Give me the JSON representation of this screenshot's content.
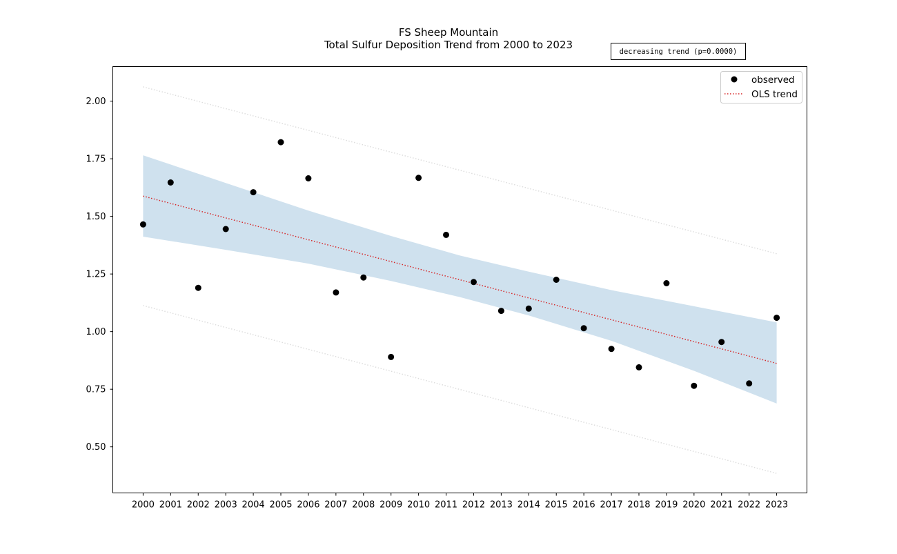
{
  "chart_data": {
    "type": "scatter",
    "title": "FS Sheep Mountain",
    "subtitle": "Total Sulfur Deposition Trend from 2000 to 2023",
    "xlabel": "",
    "ylabel": "",
    "x": [
      2000,
      2001,
      2002,
      2003,
      2004,
      2005,
      2006,
      2007,
      2008,
      2009,
      2010,
      2011,
      2012,
      2013,
      2014,
      2015,
      2016,
      2017,
      2018,
      2019,
      2020,
      2021,
      2022,
      2023
    ],
    "x_ticks": [
      "2000",
      "2001",
      "2002",
      "2003",
      "2004",
      "2005",
      "2006",
      "2007",
      "2008",
      "2009",
      "2010",
      "2011",
      "2012",
      "2013",
      "2014",
      "2015",
      "2016",
      "2017",
      "2018",
      "2019",
      "2020",
      "2021",
      "2022",
      "2023"
    ],
    "y_ticks": [
      "0.50",
      "0.75",
      "1.00",
      "1.25",
      "1.50",
      "1.75",
      "2.00"
    ],
    "xlim": [
      1998.9,
      2024.1
    ],
    "ylim": [
      0.3,
      2.15
    ],
    "grid": false,
    "legend_position": "top-right",
    "series": [
      {
        "name": "observed",
        "kind": "points",
        "color": "#000000",
        "values": [
          1.465,
          1.647,
          1.19,
          1.445,
          1.605,
          1.822,
          1.665,
          1.17,
          1.235,
          0.89,
          1.667,
          1.42,
          1.215,
          1.09,
          1.1,
          1.225,
          1.015,
          0.925,
          0.845,
          1.21,
          0.765,
          0.955,
          0.775,
          1.06
        ]
      },
      {
        "name": "OLS trend",
        "kind": "line",
        "color": "#d62728",
        "start": [
          2000,
          1.588
        ],
        "end": [
          2023,
          0.862
        ]
      }
    ],
    "confidence_band": {
      "color": "#cfe1ee",
      "x": [
        2000,
        2003,
        2006,
        2009,
        2011.5,
        2014,
        2017,
        2020,
        2023
      ],
      "upper": [
        1.765,
        1.645,
        1.525,
        1.415,
        1.33,
        1.26,
        1.18,
        1.11,
        1.04
      ],
      "lower": [
        1.412,
        1.355,
        1.295,
        1.22,
        1.15,
        1.07,
        0.96,
        0.83,
        0.688
      ]
    },
    "prediction_band": {
      "color": "#dddddd",
      "upper_start": [
        2000,
        2.062
      ],
      "upper_end": [
        2023,
        1.338
      ],
      "lower_start": [
        2000,
        1.113
      ],
      "lower_end": [
        2023,
        0.385
      ]
    },
    "annotation": "decreasing trend (p=0.0000)"
  }
}
